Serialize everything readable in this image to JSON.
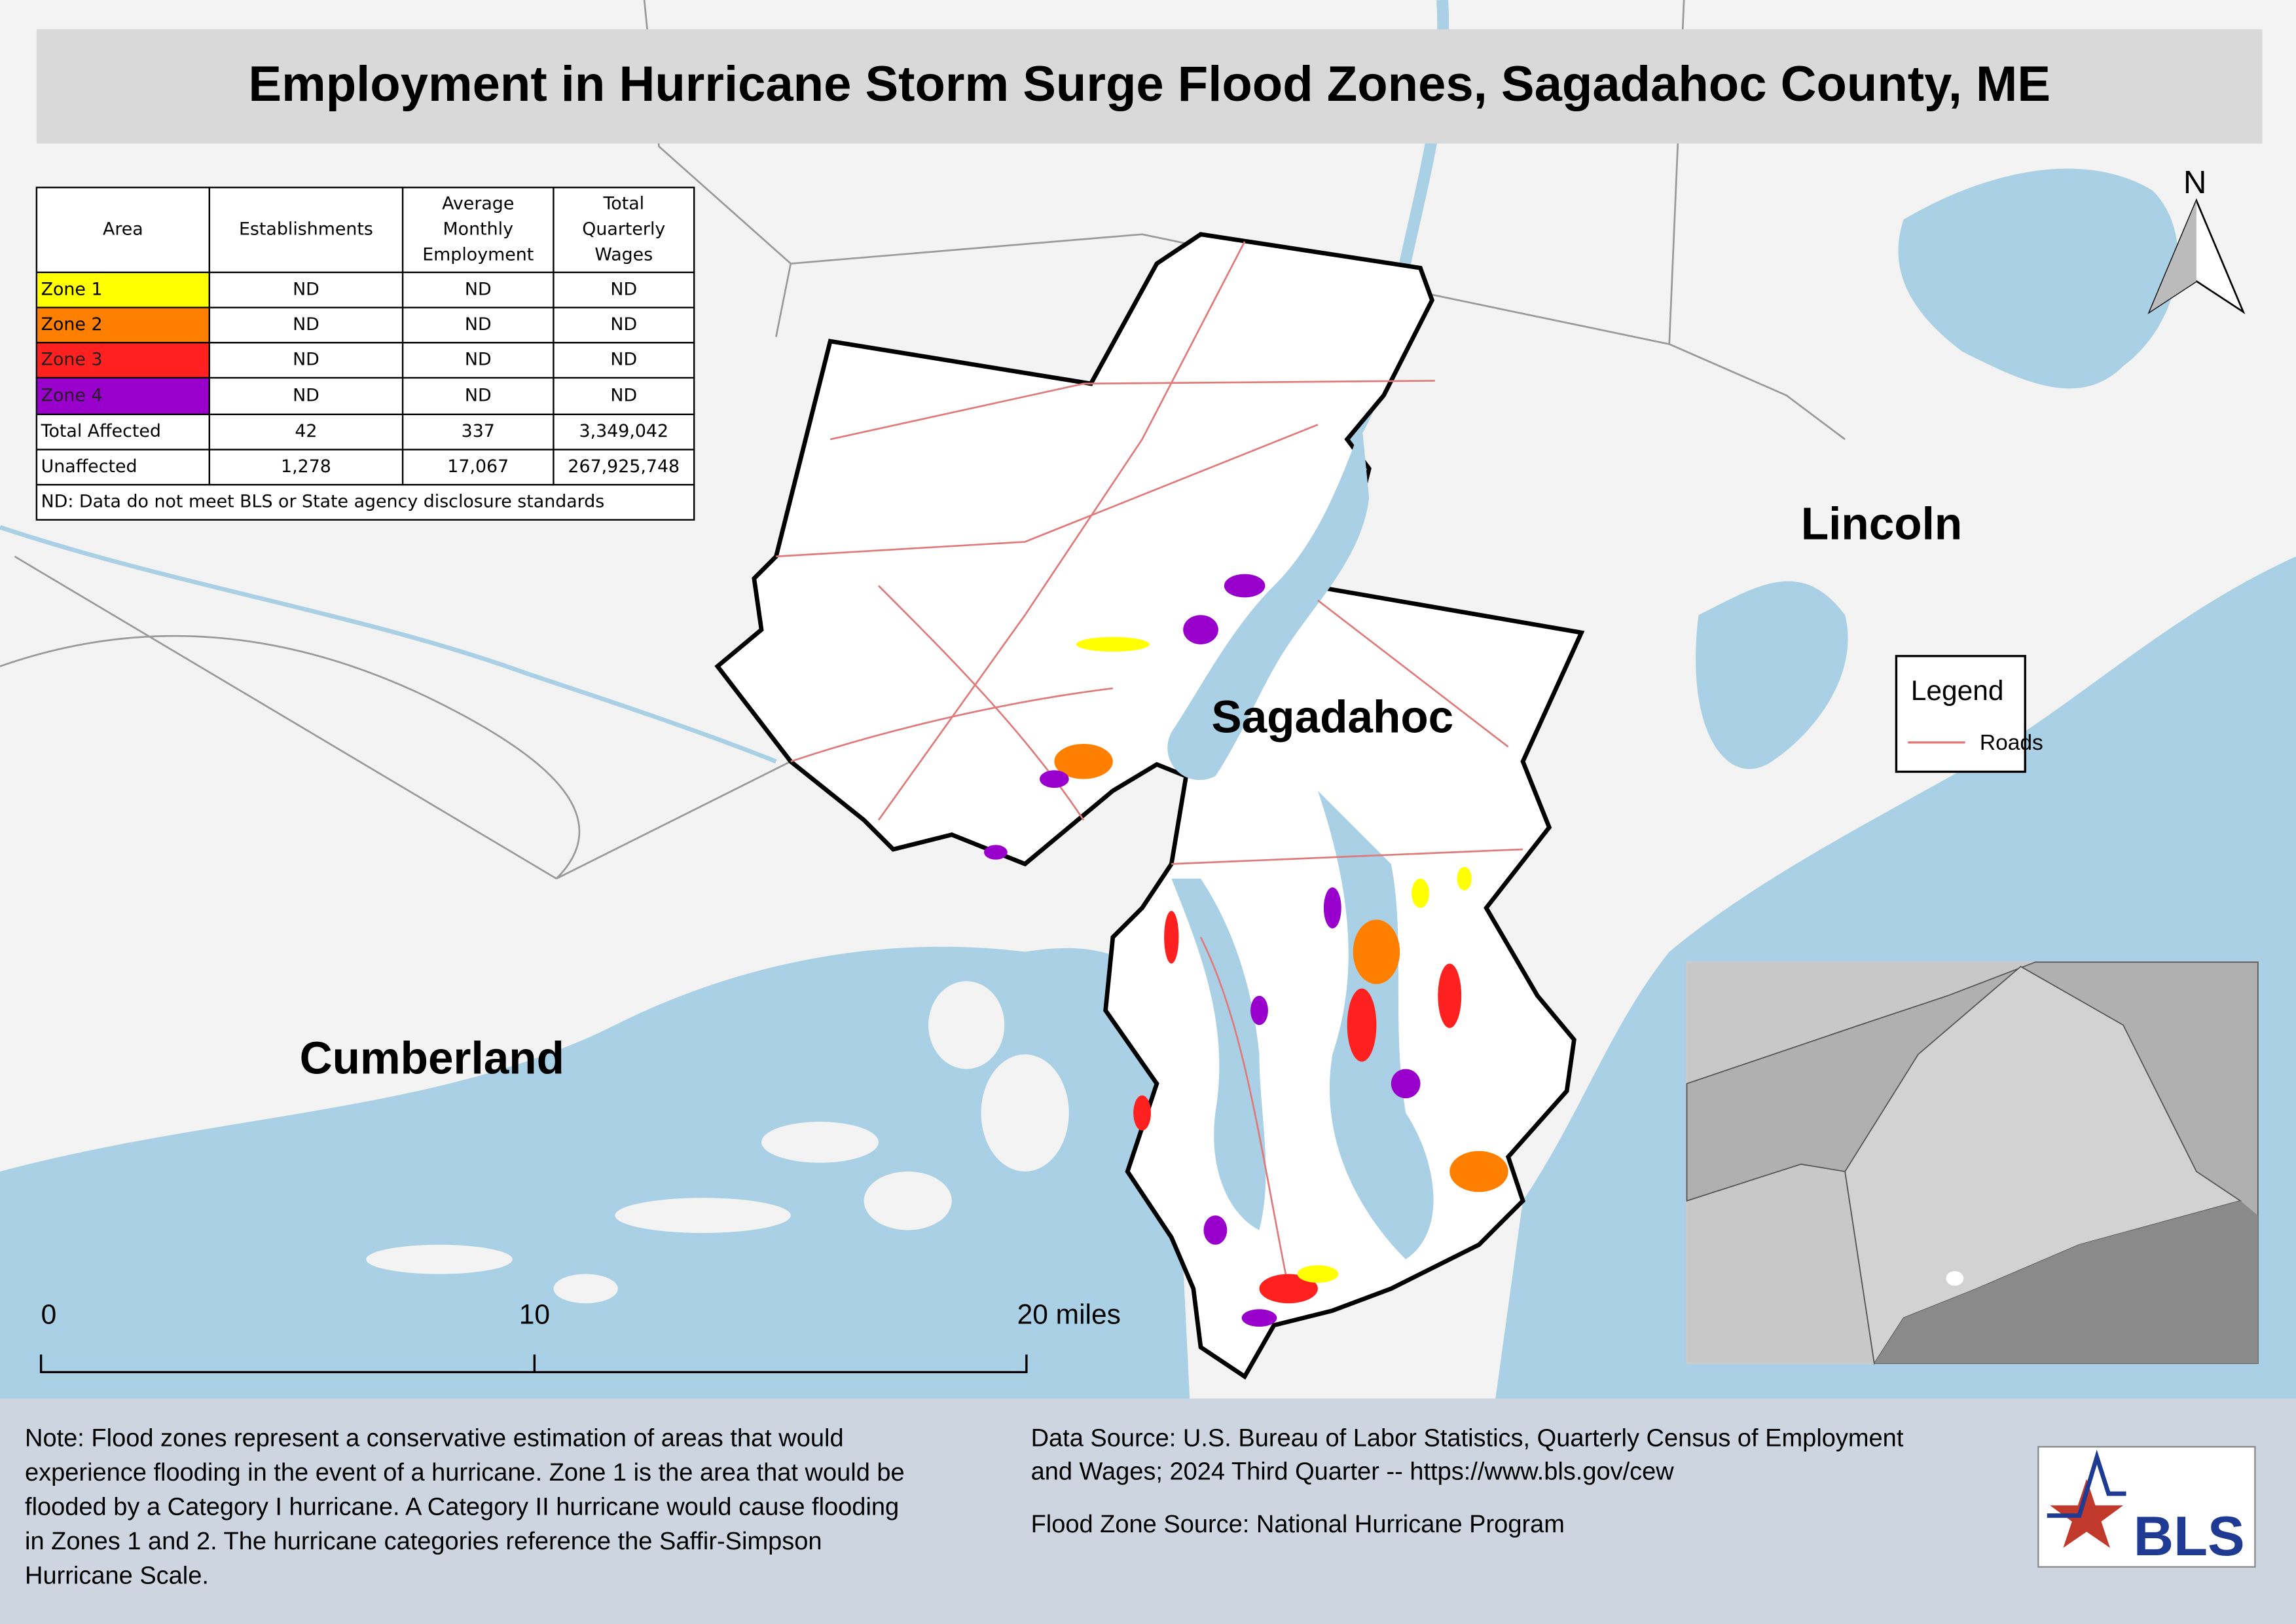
{
  "title": "Employment in Hurricane Storm Surge Flood Zones, Sagadahoc County, ME",
  "table": {
    "header": [
      [
        "Area"
      ],
      [
        "Establishments"
      ],
      [
        "Average",
        "Monthly",
        "Employment"
      ],
      [
        "Total",
        "Quarterly",
        "Wages"
      ]
    ],
    "rows": [
      [
        "Zone 1",
        "ND",
        "ND",
        "ND"
      ],
      [
        "Zone 2",
        "ND",
        "ND",
        "ND"
      ],
      [
        "Zone 3",
        "ND",
        "ND",
        "ND"
      ],
      [
        "Zone 4",
        "ND",
        "ND",
        "ND"
      ],
      [
        "Total Affected",
        "42",
        "337",
        "3,349,042"
      ],
      [
        "Unaffected",
        "1,278",
        "17,067",
        "267,925,748"
      ]
    ],
    "footnote": "ND: Data do not meet BLS or State agency disclosure standards"
  },
  "labels": [
    "Lincoln",
    "Sagadahoc",
    "Cumberland"
  ],
  "legend": {
    "title": "Legend",
    "items": [
      "Roads"
    ]
  },
  "north_arrow": "N",
  "scale_bar": [
    "0",
    "10",
    "20 miles"
  ],
  "note": [
    "Note: Flood zones represent a conservative estimation of areas that would",
    "experience flooding in the event of a hurricane. Zone 1 is the area that would be",
    "flooded by a Category I hurricane. A Category II hurricane would cause flooding",
    "in Zones 1 and 2. The hurricane categories reference the Saffir-Simpson",
    "Hurricane Scale."
  ],
  "source": [
    "Data Source: U.S. Bureau of Labor Statistics, Quarterly Census of Employment",
    "and Wages; 2024 Third Quarter -- https://www.bls.gov/cew"
  ],
  "flood_source": "Flood Zone Source: National Hurricane Program",
  "logo": "BLS"
}
